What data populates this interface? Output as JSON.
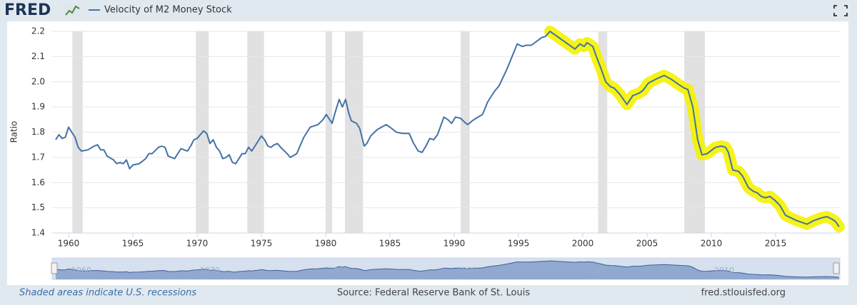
{
  "logo": "FRED",
  "chart_data": {
    "type": "line",
    "y_label": "Ratio",
    "x": [
      1959,
      1959.25,
      1959.5,
      1959.75,
      1960,
      1960.25,
      1960.5,
      1960.75,
      1961,
      1961.5,
      1962,
      1962.25,
      1962.5,
      1962.75,
      1963,
      1963.5,
      1963.75,
      1964,
      1964.25,
      1964.5,
      1964.75,
      1965,
      1965.5,
      1966,
      1966.25,
      1966.5,
      1967,
      1967.25,
      1967.5,
      1967.75,
      1968.25,
      1968.75,
      1969,
      1969.25,
      1969.5,
      1969.75,
      1970,
      1970.25,
      1970.5,
      1970.75,
      1971,
      1971.25,
      1971.5,
      1971.75,
      1972,
      1972.25,
      1972.5,
      1972.75,
      1973,
      1973.25,
      1973.5,
      1973.75,
      1974,
      1974.25,
      1974.5,
      1974.75,
      1975,
      1975.25,
      1975.5,
      1975.75,
      1976,
      1976.25,
      1976.5,
      1977,
      1977.25,
      1977.75,
      1978.3,
      1978.8,
      1979.4,
      1979.8,
      1980.05,
      1980.5,
      1980.75,
      1981.05,
      1981.3,
      1981.55,
      1981.8,
      1982,
      1982.4,
      1982.65,
      1983,
      1983.2,
      1983.5,
      1984,
      1984.7,
      1985,
      1985.5,
      1986,
      1986.5,
      1986.8,
      1987.2,
      1987.5,
      1987.8,
      1988.1,
      1988.4,
      1988.7,
      1989.2,
      1989.5,
      1989.8,
      1990.1,
      1990.5,
      1990.8,
      1991.05,
      1991.4,
      1991.7,
      1992.2,
      1992.6,
      1993.1,
      1993.5,
      1994.1,
      1994.5,
      1994.9,
      1995.3,
      1995.6,
      1996,
      1996.4,
      1996.8,
      1997.1,
      1997.45,
      1998.56,
      1999.39,
      1999.78,
      2000.11,
      2000.33,
      2000.78,
      2001.06,
      2001.44,
      2001.78,
      2002.17,
      2002.44,
      2002.89,
      2003.44,
      2003.89,
      2004.39,
      2004.67,
      2005.11,
      2005.67,
      2006.33,
      2006.89,
      2007.44,
      2007.89,
      2008.17,
      2008.56,
      2008.94,
      2009.28,
      2009.67,
      2010.33,
      2010.78,
      2011.11,
      2011.33,
      2011.67,
      2012.11,
      2012.44,
      2012.89,
      2013.28,
      2013.56,
      2013.89,
      2014.22,
      2014.56,
      2014.94,
      2015.33,
      2015.78,
      2016.61,
      2017.44,
      2018,
      2018.56,
      2019,
      2019.39,
      2019.67,
      2019.94
    ],
    "series": [
      {
        "name": "Velocity of M2 Money Stock",
        "color": "#4572a7",
        "values": [
          1.77,
          1.79,
          1.775,
          1.78,
          1.82,
          1.8,
          1.78,
          1.74,
          1.725,
          1.73,
          1.745,
          1.75,
          1.73,
          1.73,
          1.705,
          1.69,
          1.675,
          1.68,
          1.675,
          1.69,
          1.655,
          1.67,
          1.675,
          1.695,
          1.715,
          1.715,
          1.74,
          1.745,
          1.74,
          1.705,
          1.695,
          1.735,
          1.73,
          1.725,
          1.745,
          1.77,
          1.775,
          1.79,
          1.805,
          1.795,
          1.755,
          1.77,
          1.74,
          1.725,
          1.695,
          1.7,
          1.71,
          1.68,
          1.675,
          1.695,
          1.715,
          1.715,
          1.74,
          1.725,
          1.745,
          1.765,
          1.785,
          1.77,
          1.745,
          1.74,
          1.75,
          1.755,
          1.74,
          1.715,
          1.7,
          1.715,
          1.78,
          1.82,
          1.83,
          1.85,
          1.87,
          1.835,
          1.88,
          1.93,
          1.9,
          1.93,
          1.875,
          1.845,
          1.835,
          1.815,
          1.745,
          1.755,
          1.785,
          1.81,
          1.83,
          1.82,
          1.8,
          1.795,
          1.795,
          1.76,
          1.725,
          1.72,
          1.745,
          1.775,
          1.77,
          1.79,
          1.86,
          1.85,
          1.835,
          1.86,
          1.855,
          1.84,
          1.83,
          1.845,
          1.855,
          1.87,
          1.92,
          1.96,
          1.985,
          2.05,
          2.1,
          2.15,
          2.14,
          2.145,
          2.145,
          2.16,
          2.175,
          2.18,
          2.2,
          2.16,
          2.13,
          2.15,
          2.14,
          2.155,
          2.14,
          2.1,
          2.05,
          2,
          1.98,
          1.975,
          1.95,
          1.91,
          1.945,
          1.955,
          1.965,
          1.995,
          2.01,
          2.025,
          2.01,
          1.99,
          1.975,
          1.97,
          1.9,
          1.77,
          1.71,
          1.715,
          1.74,
          1.745,
          1.74,
          1.72,
          1.65,
          1.645,
          1.625,
          1.58,
          1.565,
          1.56,
          1.545,
          1.54,
          1.545,
          1.53,
          1.51,
          1.47,
          1.45,
          1.435,
          1.45,
          1.46,
          1.465,
          1.455,
          1.445,
          1.425
        ]
      }
    ],
    "recessions": [
      [
        1960.3,
        1961.1
      ],
      [
        1969.9,
        1970.9
      ],
      [
        1973.9,
        1975.2
      ],
      [
        1980,
        1980.5
      ],
      [
        1981.5,
        1982.9
      ],
      [
        1990.5,
        1991.2
      ],
      [
        2001.2,
        2001.9
      ],
      [
        2007.9,
        2009.5
      ]
    ],
    "highlight": {
      "from": 1997.45,
      "to": 2019.94,
      "color": "#f5f200"
    },
    "xlim": [
      1958.72,
      2020
    ],
    "xticks": [
      1960,
      1965,
      1970,
      1975,
      1980,
      1985,
      1990,
      1995,
      2000,
      2005,
      2010,
      2015
    ],
    "ylim": [
      1.4,
      2.2
    ],
    "yticks": [
      1.4,
      1.5,
      1.6,
      1.7,
      1.8,
      1.9,
      {
        "value": 2,
        "label": "2.0"
      },
      2.1,
      2.2
    ],
    "grid": true,
    "note": "Shaded areas indicate U.S. recessions",
    "source": "Source: Federal Reserve Bank of St. Louis",
    "site": "fred.stlouisfed.org"
  }
}
